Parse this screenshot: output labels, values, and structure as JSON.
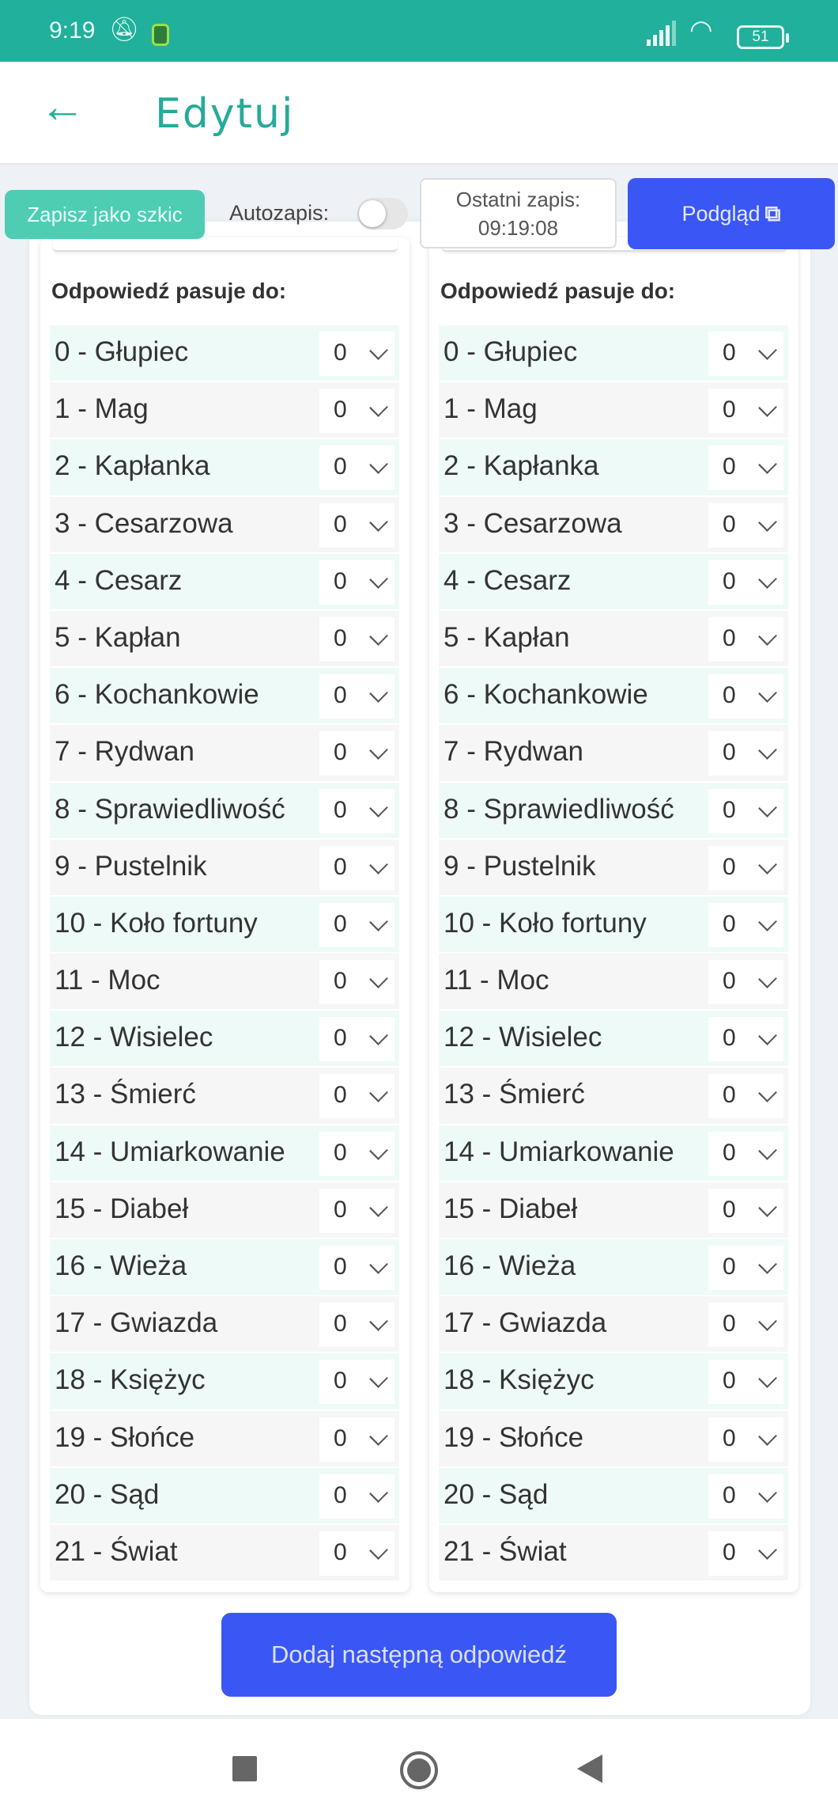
{
  "status_bar": {
    "time": "9:19",
    "battery": "51",
    "icons": [
      "bell-off-icon",
      "app-notification-icon",
      "signal-icon",
      "wifi-icon",
      "battery-icon"
    ]
  },
  "header": {
    "title": "Edytuj",
    "back_icon": "arrow-left-icon"
  },
  "toolbar": {
    "draft_label": "Zapisz jako szkic",
    "autosave_label": "Autozapis:",
    "autosave_on": false,
    "last_save_label": "Ostatni zapis:",
    "last_save_time": "09:19:08",
    "preview_label": "Podgląd",
    "preview_icon": "external-link-icon"
  },
  "colors": {
    "accent": "#20b09c",
    "primary": "#3a57f5",
    "draft": "#4ecdb3",
    "row_alt": "#eefaf7"
  },
  "cards": [
    {
      "heading": "Odpowiedź pasuje do:",
      "items": [
        {
          "label": "0 - Głupiec",
          "value": "0"
        },
        {
          "label": "1 - Mag",
          "value": "0"
        },
        {
          "label": "2 - Kapłanka",
          "value": "0"
        },
        {
          "label": "3 - Cesarzowa",
          "value": "0"
        },
        {
          "label": "4 - Cesarz",
          "value": "0"
        },
        {
          "label": "5 - Kapłan",
          "value": "0"
        },
        {
          "label": "6 - Kochankowie",
          "value": "0"
        },
        {
          "label": "7 - Rydwan",
          "value": "0"
        },
        {
          "label": "8 - Sprawiedliwość",
          "value": "0"
        },
        {
          "label": "9 - Pustelnik",
          "value": "0"
        },
        {
          "label": "10 - Koło fortuny",
          "value": "0"
        },
        {
          "label": "11 - Moc",
          "value": "0"
        },
        {
          "label": "12 - Wisielec",
          "value": "0"
        },
        {
          "label": "13 - Śmierć",
          "value": "0"
        },
        {
          "label": "14 - Umiarkowanie",
          "value": "0"
        },
        {
          "label": "15 - Diabeł",
          "value": "0"
        },
        {
          "label": "16 - Wieża",
          "value": "0"
        },
        {
          "label": "17 - Gwiazda",
          "value": "0"
        },
        {
          "label": "18 - Księżyc",
          "value": "0"
        },
        {
          "label": "19 - Słońce",
          "value": "0"
        },
        {
          "label": "20 - Sąd",
          "value": "0"
        },
        {
          "label": "21 - Świat",
          "value": "0"
        }
      ]
    },
    {
      "heading": "Odpowiedź pasuje do:",
      "items": [
        {
          "label": "0 - Głupiec",
          "value": "0"
        },
        {
          "label": "1 - Mag",
          "value": "0"
        },
        {
          "label": "2 - Kapłanka",
          "value": "0"
        },
        {
          "label": "3 - Cesarzowa",
          "value": "0"
        },
        {
          "label": "4 - Cesarz",
          "value": "0"
        },
        {
          "label": "5 - Kapłan",
          "value": "0"
        },
        {
          "label": "6 - Kochankowie",
          "value": "0"
        },
        {
          "label": "7 - Rydwan",
          "value": "0"
        },
        {
          "label": "8 - Sprawiedliwość",
          "value": "0"
        },
        {
          "label": "9 - Pustelnik",
          "value": "0"
        },
        {
          "label": "10 - Koło fortuny",
          "value": "0"
        },
        {
          "label": "11 - Moc",
          "value": "0"
        },
        {
          "label": "12 - Wisielec",
          "value": "0"
        },
        {
          "label": "13 - Śmierć",
          "value": "0"
        },
        {
          "label": "14 - Umiarkowanie",
          "value": "0"
        },
        {
          "label": "15 - Diabeł",
          "value": "0"
        },
        {
          "label": "16 - Wieża",
          "value": "0"
        },
        {
          "label": "17 - Gwiazda",
          "value": "0"
        },
        {
          "label": "18 - Księżyc",
          "value": "0"
        },
        {
          "label": "19 - Słońce",
          "value": "0"
        },
        {
          "label": "20 - Sąd",
          "value": "0"
        },
        {
          "label": "21 - Świat",
          "value": "0"
        }
      ]
    }
  ],
  "add_button": {
    "label": "Dodaj następną odpowiedź"
  },
  "nav_bar": {
    "icons": [
      "recents-square-icon",
      "home-circle-icon",
      "back-triangle-icon"
    ]
  }
}
